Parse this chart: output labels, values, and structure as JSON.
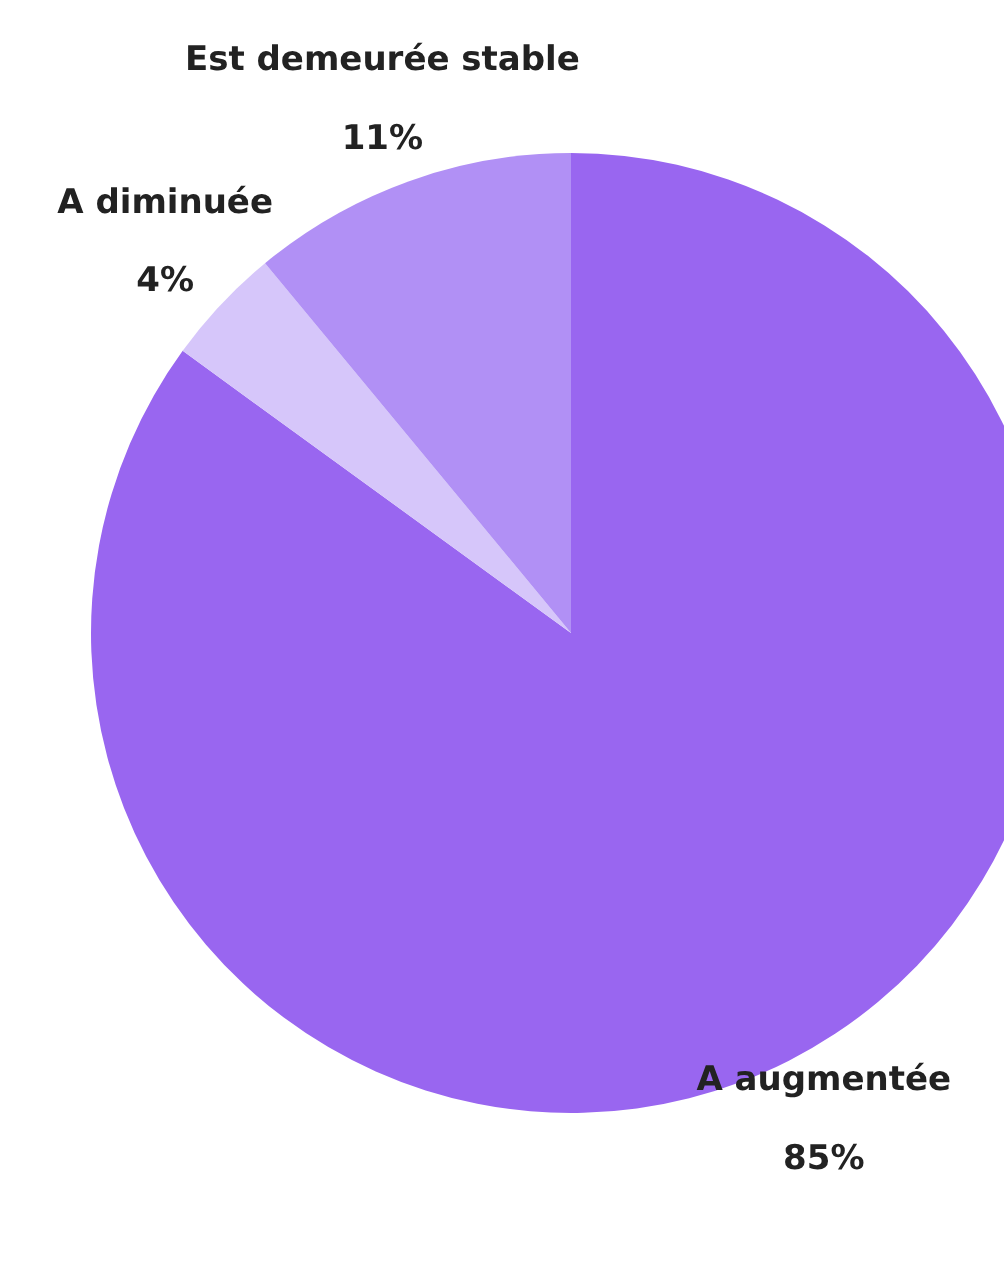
{
  "chart_data": {
    "type": "pie",
    "categories": [
      "A augmentée",
      "A diminuée",
      "Est demeurée stable"
    ],
    "values": [
      85,
      4,
      11
    ],
    "colors": [
      "#9966f0",
      "#d6c6fa",
      "#b190f5"
    ],
    "value_labels": [
      "85%",
      "4%",
      "11%"
    ]
  }
}
